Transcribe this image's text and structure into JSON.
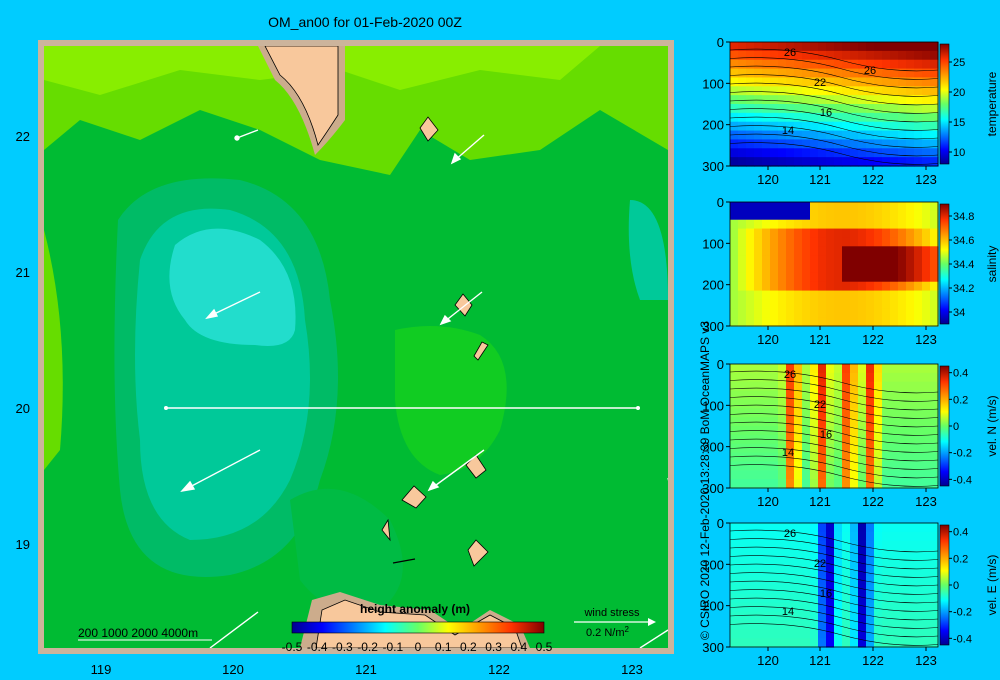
{
  "title": "OM_an00 for 01-Feb-2020 00Z",
  "credit": "© CSIRO 2020   12-Feb-2020 13:28:39 BoM OceanMAPS v3",
  "map": {
    "x_ticks": [
      "119",
      "120",
      "121",
      "122",
      "123"
    ],
    "y_ticks": [
      "22",
      "21",
      "20",
      "19"
    ],
    "depth_legend": "200   1000   2000   4000m",
    "colorbar_title": "height anomaly (m)",
    "colorbar_ticks": [
      "-0.5",
      "-0.4",
      "-0.3",
      "-0.2",
      "-0.1",
      "0",
      "0.1",
      "0.2",
      "0.3",
      "0.4",
      "0.5"
    ],
    "wind_label": "wind stress",
    "wind_scale": "0.2 N/m",
    "wind_scale_sup": "2",
    "colors": {
      "land": "#f8c89c",
      "shelf": "#ccac8c",
      "frame": "#ccb49c",
      "section_line": "#ffffff"
    }
  },
  "chart_data": [
    {
      "type": "heatmap",
      "title": "OM_an00 for 01-Feb-2020 00Z",
      "colorbar_label": "height anomaly (m)",
      "xlim": [
        118.5,
        123.5
      ],
      "ylim": [
        18.3,
        22.7
      ],
      "clim": [
        -0.5,
        0.5
      ],
      "section": {
        "from": [
          119.5,
          20.0
        ],
        "to": [
          123.2,
          20.0
        ]
      },
      "wind_stress_label": "wind stress",
      "wind_stress_scale": "0.2 N/m2",
      "depth_legend": [
        "200",
        "1000",
        "2000",
        "4000m"
      ]
    },
    {
      "type": "heatmap",
      "name": "temperature",
      "ylabel": "temperature",
      "x_ticks": [
        "120",
        "121",
        "122",
        "123"
      ],
      "y_ticks": [
        "0",
        "100",
        "200",
        "300"
      ],
      "ylim": [
        0,
        300
      ],
      "cbar_ticks": [
        "25",
        "20",
        "15",
        "10"
      ],
      "clim": [
        8,
        28
      ],
      "contour_labels": [
        "26",
        "22",
        "16",
        "14",
        "26"
      ]
    },
    {
      "type": "heatmap",
      "name": "salinity",
      "ylabel": "salinity",
      "x_ticks": [
        "120",
        "121",
        "122",
        "123"
      ],
      "y_ticks": [
        "0",
        "100",
        "200",
        "300"
      ],
      "ylim": [
        0,
        300
      ],
      "cbar_ticks": [
        "34.8",
        "34.6",
        "34.4",
        "34.2",
        "34"
      ],
      "clim": [
        33.9,
        34.9
      ]
    },
    {
      "type": "heatmap",
      "name": "vel. N (m/s)",
      "ylabel": "vel. N  (m/s)",
      "x_ticks": [
        "120",
        "121",
        "122",
        "123"
      ],
      "y_ticks": [
        "0",
        "100",
        "200",
        "300"
      ],
      "ylim": [
        0,
        300
      ],
      "cbar_ticks": [
        "0.4",
        "0.2",
        "0",
        "-0.2",
        "-0.4"
      ],
      "clim": [
        -0.45,
        0.45
      ],
      "contour_labels": [
        "26",
        "22",
        "16",
        "14"
      ]
    },
    {
      "type": "heatmap",
      "name": "vel. E (m/s)",
      "ylabel": "vel. E  (m/s)",
      "x_ticks": [
        "120",
        "121",
        "122",
        "123"
      ],
      "y_ticks": [
        "0",
        "100",
        "200",
        "300"
      ],
      "ylim": [
        0,
        300
      ],
      "cbar_ticks": [
        "0.4",
        "0.2",
        "0",
        "-0.2",
        "-0.4"
      ],
      "clim": [
        -0.45,
        0.45
      ],
      "contour_labels": [
        "26",
        "22",
        "16",
        "14"
      ]
    }
  ]
}
